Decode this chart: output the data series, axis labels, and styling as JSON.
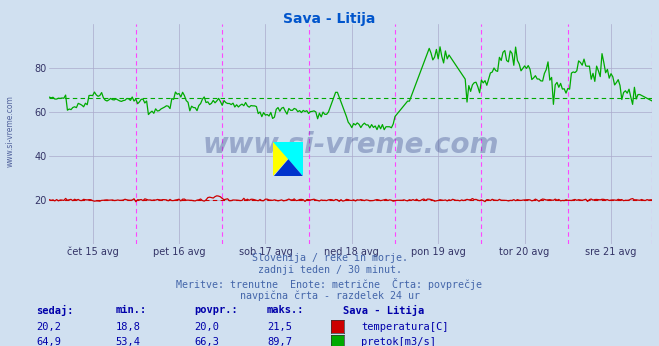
{
  "title": "Sava - Litija",
  "title_color": "#0055cc",
  "bg_color": "#d0e0f0",
  "plot_bg_color": "#d0e0f0",
  "xlabel_dates": [
    "čet 15 avg",
    "pet 16 avg",
    "sob 17 avg",
    "ned 18 avg",
    "pon 19 avg",
    "tor 20 avg",
    "sre 21 avg"
  ],
  "ylim": [
    0,
    100
  ],
  "yticks": [
    20,
    40,
    60,
    80
  ],
  "temp_color": "#cc0000",
  "flow_color": "#00aa00",
  "avg_temp": 20.0,
  "avg_flow": 66.3,
  "vline_color": "#ff44ff",
  "grid_color": "#aaaacc",
  "watermark": "www.si-vreme.com",
  "watermark_color": "#334488",
  "footer_line1": "Slovenija / reke in morje.",
  "footer_line2": "zadnji teden / 30 minut.",
  "footer_line3": "Meritve: trenutne  Enote: metrične  Črta: povprečje",
  "footer_line4": "navpična črta - razdelek 24 ur",
  "footer_color": "#4466aa",
  "table_header": [
    "sedaj:",
    "min.:",
    "povpr.:",
    "maks.:"
  ],
  "table_temp": [
    "20,2",
    "18,8",
    "20,0",
    "21,5"
  ],
  "table_flow": [
    "64,9",
    "53,4",
    "66,3",
    "89,7"
  ],
  "table_station": "Sava - Litija",
  "table_label_temp": "temperatura[C]",
  "table_label_flow": "pretok[m3/s]",
  "table_color": "#0000aa",
  "n_points": 336,
  "x_vlines": [
    48,
    96,
    144,
    192,
    240,
    288
  ]
}
